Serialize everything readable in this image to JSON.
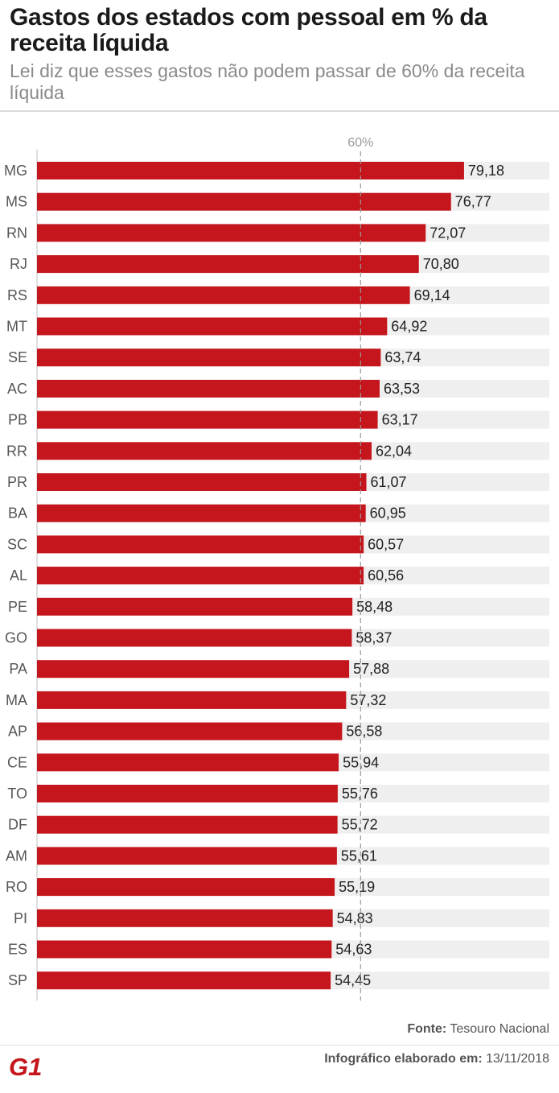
{
  "header": {
    "title": "Gastos dos estados com pessoal em % da receita líquida",
    "subtitle": "Lei diz que esses gastos não podem passar de 60% da receita líquida"
  },
  "chart_data": {
    "type": "bar",
    "orientation": "horizontal",
    "categories": [
      "MG",
      "MS",
      "RN",
      "RJ",
      "RS",
      "MT",
      "SE",
      "AC",
      "PB",
      "RR",
      "PR",
      "BA",
      "SC",
      "AL",
      "PE",
      "GO",
      "PA",
      "MA",
      "AP",
      "CE",
      "TO",
      "DF",
      "AM",
      "RO",
      "PI",
      "ES",
      "SP"
    ],
    "values": [
      79.18,
      76.77,
      72.07,
      70.8,
      69.14,
      64.92,
      63.74,
      63.53,
      63.17,
      62.04,
      61.07,
      60.95,
      60.57,
      60.56,
      58.48,
      58.37,
      57.88,
      57.32,
      56.58,
      55.94,
      55.76,
      55.72,
      55.61,
      55.19,
      54.83,
      54.63,
      54.45
    ],
    "value_labels": [
      "79,18",
      "76,77",
      "72,07",
      "70,80",
      "69,14",
      "64,92",
      "63,74",
      "63,53",
      "63,17",
      "62,04",
      "61,07",
      "60,95",
      "60,57",
      "60,56",
      "58,48",
      "58,37",
      "57,88",
      "57,32",
      "56,58",
      "55,94",
      "55,76",
      "55,72",
      "55,61",
      "55,19",
      "54,83",
      "54,63",
      "54,45"
    ],
    "xlim": [
      0,
      95
    ],
    "reference_line": {
      "value": 60,
      "label": "60%"
    },
    "bar_color": "#c4161c",
    "track_color": "#efefef"
  },
  "footer": {
    "source_key": "Fonte:",
    "source_value": "Tesouro Nacional",
    "credit_key": "Infográfico elaborado em:",
    "credit_value": "13/11/2018",
    "logo_text": "G1",
    "logo_color": "#c4161c"
  }
}
